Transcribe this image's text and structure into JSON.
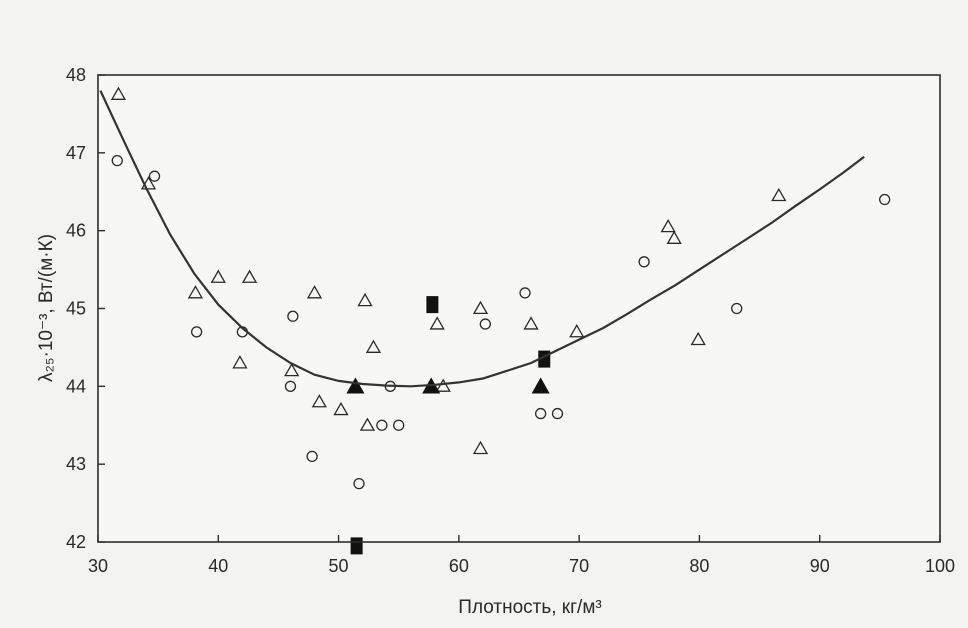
{
  "chart_data": {
    "type": "scatter",
    "title": "",
    "xlabel": "Плотность, кг/м³",
    "ylabel": "λ₂₅·10⁻³, Вт/(м·К)",
    "xlim": [
      30,
      100
    ],
    "ylim": [
      42,
      48
    ],
    "xticks": [
      30,
      40,
      50,
      60,
      70,
      80,
      90,
      100
    ],
    "yticks": [
      42,
      43,
      44,
      45,
      46,
      47,
      48
    ],
    "grid": false,
    "legend": "none",
    "colors": {
      "marker": "#2a2a2a",
      "curve": "#333333"
    },
    "series": [
      {
        "marker": "open-triangle",
        "points": [
          [
            31.7,
            47.75
          ],
          [
            34.2,
            46.6
          ],
          [
            38.1,
            45.2
          ],
          [
            40.0,
            45.4
          ],
          [
            42.6,
            45.4
          ],
          [
            41.8,
            44.3
          ],
          [
            46.1,
            44.2
          ],
          [
            48.0,
            45.2
          ],
          [
            48.4,
            43.8
          ],
          [
            50.2,
            43.7
          ],
          [
            52.2,
            45.1
          ],
          [
            52.4,
            43.5
          ],
          [
            52.9,
            44.5
          ],
          [
            58.2,
            44.8
          ],
          [
            58.7,
            44.0
          ],
          [
            61.8,
            45.0
          ],
          [
            61.8,
            43.2
          ],
          [
            66.0,
            44.8
          ],
          [
            69.8,
            44.7
          ],
          [
            77.4,
            46.05
          ],
          [
            77.9,
            45.9
          ],
          [
            79.9,
            44.6
          ],
          [
            86.6,
            46.45
          ]
        ]
      },
      {
        "marker": "open-circle",
        "points": [
          [
            31.6,
            46.9
          ],
          [
            34.7,
            46.7
          ],
          [
            38.2,
            44.7
          ],
          [
            42.0,
            44.7
          ],
          [
            46.2,
            44.9
          ],
          [
            46.0,
            44.0
          ],
          [
            47.8,
            43.1
          ],
          [
            51.7,
            42.75
          ],
          [
            53.6,
            43.5
          ],
          [
            54.3,
            44.0
          ],
          [
            55.0,
            43.5
          ],
          [
            62.2,
            44.8
          ],
          [
            65.5,
            45.2
          ],
          [
            66.8,
            43.65
          ],
          [
            68.2,
            43.65
          ],
          [
            75.4,
            45.6
          ],
          [
            83.1,
            45.0
          ],
          [
            95.4,
            46.4
          ]
        ]
      },
      {
        "marker": "filled-square",
        "points": [
          [
            57.8,
            45.05
          ],
          [
            67.1,
            44.35
          ],
          [
            51.5,
            41.95
          ]
        ]
      },
      {
        "marker": "filled-triangle",
        "points": [
          [
            51.4,
            44.0
          ],
          [
            57.7,
            44.0
          ],
          [
            66.8,
            44.0
          ]
        ]
      },
      {
        "marker": "fit-curve",
        "points": [
          [
            30.2,
            47.8
          ],
          [
            32,
            47.2
          ],
          [
            34,
            46.55
          ],
          [
            36,
            45.95
          ],
          [
            38,
            45.45
          ],
          [
            40,
            45.05
          ],
          [
            42,
            44.75
          ],
          [
            44,
            44.5
          ],
          [
            46,
            44.3
          ],
          [
            48,
            44.15
          ],
          [
            50,
            44.07
          ],
          [
            52,
            44.03
          ],
          [
            54,
            44.01
          ],
          [
            56,
            44.0
          ],
          [
            58,
            44.02
          ],
          [
            60,
            44.05
          ],
          [
            62,
            44.1
          ],
          [
            64,
            44.2
          ],
          [
            66,
            44.3
          ],
          [
            68,
            44.45
          ],
          [
            70,
            44.6
          ],
          [
            72,
            44.75
          ],
          [
            74,
            44.93
          ],
          [
            76,
            45.12
          ],
          [
            78,
            45.3
          ],
          [
            80,
            45.5
          ],
          [
            82,
            45.7
          ],
          [
            84,
            45.9
          ],
          [
            86,
            46.1
          ],
          [
            88,
            46.32
          ],
          [
            90,
            46.53
          ],
          [
            92,
            46.75
          ],
          [
            93.7,
            46.95
          ]
        ]
      }
    ]
  }
}
